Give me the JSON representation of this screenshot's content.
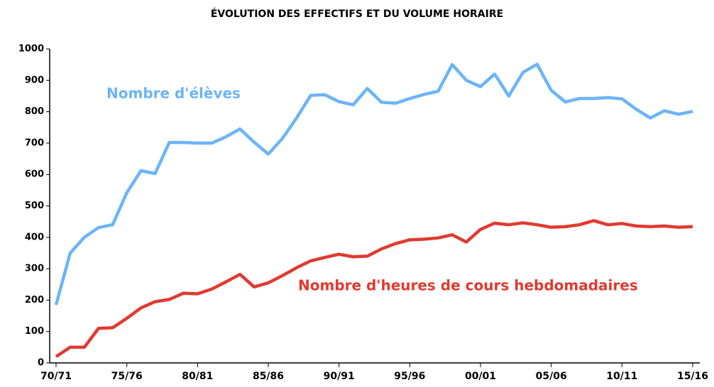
{
  "chart_data": {
    "type": "line",
    "title": "ÉVOLUTION DES EFFECTIFS ET DU VOLUME HORAIRE",
    "categories": [
      "70/71",
      null,
      null,
      null,
      null,
      "75/76",
      null,
      null,
      null,
      null,
      "80/81",
      null,
      null,
      null,
      null,
      "85/86",
      null,
      null,
      null,
      null,
      "90/91",
      null,
      null,
      null,
      null,
      "95/96",
      null,
      null,
      null,
      null,
      "00/01",
      null,
      null,
      null,
      null,
      "05/06",
      null,
      null,
      null,
      null,
      "10/11",
      null,
      null,
      null,
      null,
      "15/16"
    ],
    "series": [
      {
        "name": "Nombre d'élèves",
        "color": "#6cb4f7",
        "values": [
          185,
          350,
          400,
          431,
          440,
          542,
          612,
          603,
          702,
          702,
          700,
          700,
          720,
          745,
          703,
          665,
          715,
          780,
          852,
          854,
          832,
          822,
          874,
          830,
          827,
          842,
          855,
          865,
          950,
          900,
          880,
          920,
          850,
          925,
          951,
          868,
          831,
          842,
          842,
          845,
          841,
          808,
          780,
          803,
          792,
          801
        ]
      },
      {
        "name": "Nombre d'heures de cours hebdomadaires",
        "color": "#e03a30",
        "values": [
          20,
          50,
          50,
          110,
          112,
          142,
          175,
          195,
          202,
          222,
          220,
          235,
          258,
          282,
          242,
          255,
          278,
          303,
          325,
          336,
          346,
          338,
          340,
          363,
          380,
          392,
          394,
          398,
          408,
          385,
          425,
          445,
          440,
          446,
          440,
          432,
          434,
          440,
          453,
          440,
          444,
          436,
          434,
          436,
          432,
          434
        ]
      }
    ],
    "ylim": [
      0,
      1000
    ],
    "yticks": [
      0,
      100,
      200,
      300,
      400,
      500,
      600,
      700,
      800,
      900,
      1000
    ],
    "grid": false
  }
}
